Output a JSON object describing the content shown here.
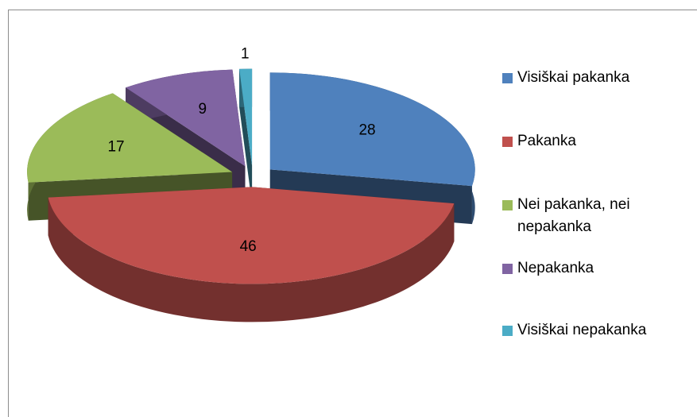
{
  "chart_data": {
    "type": "pie",
    "categories": [
      "Visiškai pakanka",
      "Pakanka",
      "Nei pakanka, nei nepakanka",
      "Nepakanka",
      "Visiškai nepakanka"
    ],
    "values": [
      28,
      46,
      17,
      9,
      1
    ],
    "colors": [
      "#4f81bd",
      "#c0504d",
      "#9bbb59",
      "#8064a2",
      "#4bacc6"
    ],
    "legend": "right"
  }
}
